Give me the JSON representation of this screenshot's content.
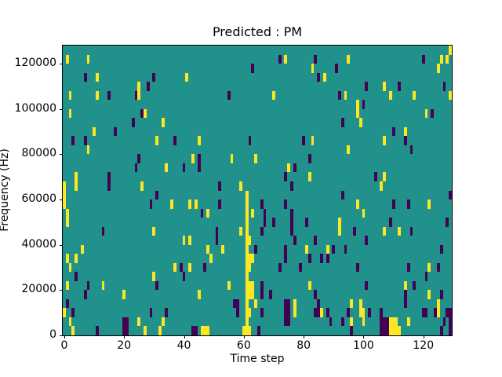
{
  "figure": {
    "background": "#ffffff"
  },
  "chart_data": {
    "type": "heatmap",
    "title": "Predicted : PM",
    "xlabel": "Time step",
    "ylabel": "Frequency (Hz)",
    "n_cols": 130,
    "n_rows": 32,
    "x_extent": [
      -0.5,
      129.5
    ],
    "y_extent_hz": [
      0,
      128000
    ],
    "xticks": [
      0,
      20,
      40,
      60,
      80,
      100,
      120
    ],
    "yticks": [
      0,
      20000,
      40000,
      60000,
      80000,
      100000,
      120000
    ],
    "grid": false,
    "legend": "none",
    "colors": {
      "background_mid": "#21918c",
      "high_y": "#fde725",
      "low_p": "#440154",
      "axis": "#000000"
    },
    "value_key": {
      "y": "high (yellow)",
      "p": "low (dark purple)",
      "unlisted cells": "mid (teal background)"
    },
    "cells": [
      [
        129,
        31,
        "y"
      ],
      [
        1,
        30,
        "y"
      ],
      [
        8,
        30,
        "y"
      ],
      [
        72,
        30,
        "p"
      ],
      [
        74,
        30,
        "y"
      ],
      [
        84,
        30,
        "p"
      ],
      [
        95,
        30,
        "y"
      ],
      [
        120,
        30,
        "p"
      ],
      [
        126,
        30,
        "y"
      ],
      [
        128,
        30,
        "y"
      ],
      [
        63,
        29,
        "p"
      ],
      [
        83,
        29,
        "y"
      ],
      [
        91,
        29,
        "p"
      ],
      [
        125,
        29,
        "y"
      ],
      [
        7,
        28,
        "p"
      ],
      [
        11,
        28,
        "y"
      ],
      [
        30,
        28,
        "p"
      ],
      [
        41,
        28,
        "y"
      ],
      [
        85,
        28,
        "p"
      ],
      [
        87,
        28,
        "y"
      ],
      [
        25,
        27,
        "y"
      ],
      [
        28,
        27,
        "p"
      ],
      [
        101,
        27,
        "p"
      ],
      [
        107,
        27,
        "y"
      ],
      [
        112,
        27,
        "p"
      ],
      [
        127,
        27,
        "p"
      ],
      [
        2,
        26,
        "y"
      ],
      [
        11,
        26,
        "y"
      ],
      [
        15,
        26,
        "p"
      ],
      [
        24,
        26,
        "p"
      ],
      [
        25,
        26,
        "y"
      ],
      [
        55,
        26,
        "p"
      ],
      [
        70,
        26,
        "y"
      ],
      [
        92,
        26,
        "p"
      ],
      [
        94,
        26,
        "y"
      ],
      [
        109,
        26,
        "y"
      ],
      [
        117,
        26,
        "y"
      ],
      [
        129,
        26,
        "y"
      ],
      [
        98,
        25,
        "y"
      ],
      [
        100,
        25,
        "p"
      ],
      [
        2,
        24,
        "y"
      ],
      [
        26,
        24,
        "p"
      ],
      [
        27,
        24,
        "y"
      ],
      [
        98,
        24,
        "y"
      ],
      [
        121,
        24,
        "y"
      ],
      [
        123,
        24,
        "p"
      ],
      [
        23,
        23,
        "p"
      ],
      [
        33,
        23,
        "y"
      ],
      [
        93,
        23,
        "p"
      ],
      [
        99,
        23,
        "y"
      ],
      [
        10,
        22,
        "y"
      ],
      [
        17,
        22,
        "p"
      ],
      [
        110,
        22,
        "p"
      ],
      [
        114,
        22,
        "y"
      ],
      [
        3,
        21,
        "p"
      ],
      [
        7,
        21,
        "p"
      ],
      [
        31,
        21,
        "y"
      ],
      [
        37,
        21,
        "p"
      ],
      [
        45,
        21,
        "y"
      ],
      [
        62,
        21,
        "p"
      ],
      [
        80,
        21,
        "p"
      ],
      [
        83,
        21,
        "y"
      ],
      [
        107,
        21,
        "y"
      ],
      [
        114,
        21,
        "p"
      ],
      [
        8,
        20,
        "y"
      ],
      [
        95,
        20,
        "y"
      ],
      [
        116,
        20,
        "p"
      ],
      [
        25,
        19,
        "p"
      ],
      [
        43,
        19,
        "y"
      ],
      [
        45,
        19,
        "p"
      ],
      [
        56,
        19,
        "y"
      ],
      [
        64,
        19,
        "y"
      ],
      [
        82,
        19,
        "p"
      ],
      [
        24,
        18,
        "p"
      ],
      [
        34,
        18,
        "y"
      ],
      [
        40,
        18,
        "p"
      ],
      [
        45,
        18,
        "p"
      ],
      [
        75,
        18,
        "y"
      ],
      [
        77,
        18,
        "p"
      ],
      [
        4,
        17,
        "y"
      ],
      [
        15,
        17,
        "p"
      ],
      [
        74,
        17,
        "p"
      ],
      [
        82,
        17,
        "y"
      ],
      [
        104,
        17,
        "p"
      ],
      [
        107,
        17,
        "y"
      ],
      [
        0,
        16,
        "y"
      ],
      [
        4,
        16,
        "y"
      ],
      [
        15,
        16,
        "p"
      ],
      [
        26,
        16,
        "y"
      ],
      [
        52,
        16,
        "p"
      ],
      [
        59,
        16,
        "y"
      ],
      [
        76,
        16,
        "p"
      ],
      [
        106,
        16,
        "y"
      ],
      [
        0,
        15,
        "y"
      ],
      [
        31,
        15,
        "p"
      ],
      [
        61,
        15,
        "y"
      ],
      [
        93,
        15,
        "p"
      ],
      [
        129,
        15,
        "p"
      ],
      [
        0,
        14,
        "y"
      ],
      [
        29,
        14,
        "p"
      ],
      [
        36,
        14,
        "y"
      ],
      [
        42,
        14,
        "y"
      ],
      [
        44,
        14,
        "y"
      ],
      [
        52,
        14,
        "p"
      ],
      [
        61,
        14,
        "y"
      ],
      [
        66,
        14,
        "p"
      ],
      [
        74,
        14,
        "p"
      ],
      [
        98,
        14,
        "y"
      ],
      [
        110,
        14,
        "p"
      ],
      [
        115,
        14,
        "p"
      ],
      [
        122,
        14,
        "y"
      ],
      [
        1,
        13,
        "y"
      ],
      [
        46,
        13,
        "p"
      ],
      [
        48,
        13,
        "y"
      ],
      [
        61,
        13,
        "y"
      ],
      [
        63,
        13,
        "y"
      ],
      [
        67,
        13,
        "p"
      ],
      [
        76,
        13,
        "p"
      ],
      [
        100,
        13,
        "y"
      ],
      [
        1,
        12,
        "y"
      ],
      [
        61,
        12,
        "y"
      ],
      [
        67,
        12,
        "p"
      ],
      [
        70,
        12,
        "p"
      ],
      [
        76,
        12,
        "p"
      ],
      [
        81,
        12,
        "p"
      ],
      [
        92,
        12,
        "y"
      ],
      [
        109,
        12,
        "p"
      ],
      [
        128,
        12,
        "p"
      ],
      [
        13,
        11,
        "p"
      ],
      [
        30,
        11,
        "y"
      ],
      [
        51,
        11,
        "p"
      ],
      [
        59,
        11,
        "y"
      ],
      [
        61,
        11,
        "y"
      ],
      [
        66,
        11,
        "p"
      ],
      [
        76,
        11,
        "p"
      ],
      [
        92,
        11,
        "y"
      ],
      [
        97,
        11,
        "p"
      ],
      [
        107,
        11,
        "y"
      ],
      [
        112,
        11,
        "y"
      ],
      [
        116,
        11,
        "p"
      ],
      [
        40,
        10,
        "y"
      ],
      [
        42,
        10,
        "y"
      ],
      [
        51,
        10,
        "p"
      ],
      [
        61,
        10,
        "y"
      ],
      [
        62,
        10,
        "y"
      ],
      [
        77,
        10,
        "p"
      ],
      [
        84,
        10,
        "p"
      ],
      [
        101,
        10,
        "p"
      ],
      [
        6,
        9,
        "y"
      ],
      [
        48,
        9,
        "y"
      ],
      [
        53,
        9,
        "y"
      ],
      [
        61,
        9,
        "y"
      ],
      [
        64,
        9,
        "p"
      ],
      [
        74,
        9,
        "p"
      ],
      [
        81,
        9,
        "y"
      ],
      [
        88,
        9,
        "y"
      ],
      [
        90,
        9,
        "p"
      ],
      [
        94,
        9,
        "p"
      ],
      [
        126,
        9,
        "p"
      ],
      [
        1,
        8,
        "y"
      ],
      [
        4,
        8,
        "y"
      ],
      [
        49,
        8,
        "y"
      ],
      [
        61,
        8,
        "y"
      ],
      [
        62,
        8,
        "y"
      ],
      [
        63,
        8,
        "y"
      ],
      [
        74,
        8,
        "p"
      ],
      [
        82,
        8,
        "p"
      ],
      [
        86,
        8,
        "p"
      ],
      [
        88,
        8,
        "p"
      ],
      [
        2,
        7,
        "y"
      ],
      [
        37,
        7,
        "y"
      ],
      [
        39,
        7,
        "p"
      ],
      [
        42,
        7,
        "y"
      ],
      [
        47,
        7,
        "p"
      ],
      [
        61,
        7,
        "y"
      ],
      [
        62,
        7,
        "y"
      ],
      [
        72,
        7,
        "p"
      ],
      [
        79,
        7,
        "p"
      ],
      [
        98,
        7,
        "p"
      ],
      [
        115,
        7,
        "p"
      ],
      [
        122,
        7,
        "y"
      ],
      [
        125,
        7,
        "p"
      ],
      [
        4,
        6,
        "p"
      ],
      [
        30,
        6,
        "y"
      ],
      [
        40,
        6,
        "p"
      ],
      [
        61,
        6,
        "y"
      ],
      [
        121,
        6,
        "p"
      ],
      [
        1,
        5,
        "y"
      ],
      [
        8,
        5,
        "p"
      ],
      [
        13,
        5,
        "y"
      ],
      [
        31,
        5,
        "p"
      ],
      [
        55,
        5,
        "y"
      ],
      [
        61,
        5,
        "y"
      ],
      [
        62,
        5,
        "y"
      ],
      [
        63,
        5,
        "y"
      ],
      [
        66,
        5,
        "p"
      ],
      [
        82,
        5,
        "y"
      ],
      [
        101,
        5,
        "p"
      ],
      [
        114,
        5,
        "y"
      ],
      [
        117,
        5,
        "p"
      ],
      [
        7,
        4,
        "p"
      ],
      [
        20,
        4,
        "y"
      ],
      [
        45,
        4,
        "y"
      ],
      [
        61,
        4,
        "y"
      ],
      [
        62,
        4,
        "y"
      ],
      [
        63,
        4,
        "y"
      ],
      [
        66,
        4,
        "p"
      ],
      [
        69,
        4,
        "p"
      ],
      [
        84,
        4,
        "p"
      ],
      [
        114,
        4,
        "p"
      ],
      [
        122,
        4,
        "y"
      ],
      [
        126,
        4,
        "p"
      ],
      [
        1,
        3,
        "p"
      ],
      [
        57,
        3,
        "p"
      ],
      [
        58,
        3,
        "p"
      ],
      [
        61,
        3,
        "y"
      ],
      [
        64,
        3,
        "y"
      ],
      [
        74,
        3,
        "p"
      ],
      [
        75,
        3,
        "p"
      ],
      [
        77,
        3,
        "y"
      ],
      [
        85,
        3,
        "p"
      ],
      [
        96,
        3,
        "y"
      ],
      [
        99,
        3,
        "y"
      ],
      [
        114,
        3,
        "p"
      ],
      [
        125,
        3,
        "y"
      ],
      [
        0,
        2,
        "y"
      ],
      [
        3,
        2,
        "p"
      ],
      [
        29,
        2,
        "p"
      ],
      [
        34,
        2,
        "p"
      ],
      [
        58,
        2,
        "p"
      ],
      [
        61,
        2,
        "y"
      ],
      [
        62,
        2,
        "y"
      ],
      [
        66,
        2,
        "p"
      ],
      [
        74,
        2,
        "p"
      ],
      [
        75,
        2,
        "p"
      ],
      [
        77,
        2,
        "y"
      ],
      [
        84,
        2,
        "p"
      ],
      [
        85,
        2,
        "p"
      ],
      [
        86,
        2,
        "y"
      ],
      [
        88,
        2,
        "p"
      ],
      [
        95,
        2,
        "p"
      ],
      [
        99,
        2,
        "y"
      ],
      [
        100,
        2,
        "y"
      ],
      [
        102,
        2,
        "p"
      ],
      [
        106,
        2,
        "p"
      ],
      [
        120,
        2,
        "p"
      ],
      [
        121,
        2,
        "p"
      ],
      [
        124,
        2,
        "p"
      ],
      [
        125,
        2,
        "y"
      ],
      [
        128,
        2,
        "p"
      ],
      [
        129,
        2,
        "p"
      ],
      [
        2,
        1,
        "y"
      ],
      [
        20,
        1,
        "p"
      ],
      [
        21,
        1,
        "p"
      ],
      [
        25,
        1,
        "y"
      ],
      [
        33,
        1,
        "y"
      ],
      [
        61,
        1,
        "y"
      ],
      [
        74,
        1,
        "p"
      ],
      [
        75,
        1,
        "p"
      ],
      [
        89,
        1,
        "p"
      ],
      [
        93,
        1,
        "p"
      ],
      [
        96,
        1,
        "y"
      ],
      [
        100,
        1,
        "y"
      ],
      [
        106,
        1,
        "p"
      ],
      [
        107,
        1,
        "p"
      ],
      [
        108,
        1,
        "p"
      ],
      [
        109,
        1,
        "y"
      ],
      [
        110,
        1,
        "y"
      ],
      [
        111,
        1,
        "y"
      ],
      [
        115,
        1,
        "y"
      ],
      [
        127,
        1,
        "p"
      ],
      [
        129,
        1,
        "p"
      ],
      [
        3,
        0,
        "y"
      ],
      [
        11,
        0,
        "p"
      ],
      [
        20,
        0,
        "p"
      ],
      [
        21,
        0,
        "p"
      ],
      [
        27,
        0,
        "y"
      ],
      [
        32,
        0,
        "y"
      ],
      [
        43,
        0,
        "p"
      ],
      [
        44,
        0,
        "p"
      ],
      [
        46,
        0,
        "y"
      ],
      [
        47,
        0,
        "y"
      ],
      [
        48,
        0,
        "y"
      ],
      [
        60,
        0,
        "y"
      ],
      [
        61,
        0,
        "y"
      ],
      [
        62,
        0,
        "y"
      ],
      [
        65,
        0,
        "p"
      ],
      [
        96,
        0,
        "p"
      ],
      [
        106,
        0,
        "p"
      ],
      [
        107,
        0,
        "p"
      ],
      [
        108,
        0,
        "p"
      ],
      [
        109,
        0,
        "y"
      ],
      [
        110,
        0,
        "y"
      ],
      [
        111,
        0,
        "y"
      ],
      [
        112,
        0,
        "y"
      ],
      [
        126,
        0,
        "p"
      ],
      [
        129,
        0,
        "p"
      ]
    ]
  }
}
